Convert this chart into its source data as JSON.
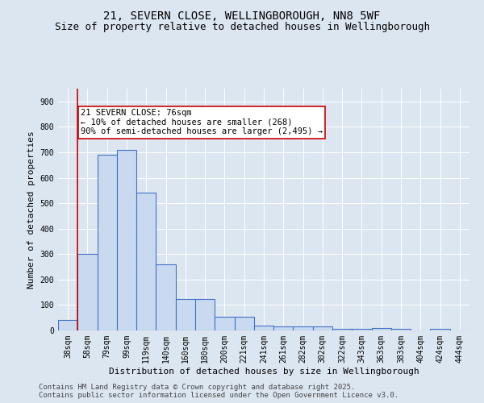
{
  "title_line1": "21, SEVERN CLOSE, WELLINGBOROUGH, NN8 5WF",
  "title_line2": "Size of property relative to detached houses in Wellingborough",
  "xlabel": "Distribution of detached houses by size in Wellingborough",
  "ylabel": "Number of detached properties",
  "categories": [
    "38sqm",
    "58sqm",
    "79sqm",
    "99sqm",
    "119sqm",
    "140sqm",
    "160sqm",
    "180sqm",
    "200sqm",
    "221sqm",
    "241sqm",
    "261sqm",
    "282sqm",
    "302sqm",
    "322sqm",
    "343sqm",
    "363sqm",
    "383sqm",
    "404sqm",
    "424sqm",
    "444sqm"
  ],
  "values": [
    40,
    300,
    690,
    710,
    540,
    260,
    125,
    125,
    55,
    55,
    20,
    15,
    15,
    15,
    6,
    5,
    10,
    5,
    0,
    5,
    0
  ],
  "bar_color": "#c9d9f0",
  "bar_edge_color": "#4472c4",
  "bar_linewidth": 0.8,
  "vline_color": "#cc0000",
  "vline_x_index": 1,
  "annotation_text": "21 SEVERN CLOSE: 76sqm\n← 10% of detached houses are smaller (268)\n90% of semi-detached houses are larger (2,495) →",
  "annotation_box_color": "#ffffff",
  "annotation_box_edgecolor": "#cc0000",
  "ylim": [
    0,
    950
  ],
  "yticks": [
    0,
    100,
    200,
    300,
    400,
    500,
    600,
    700,
    800,
    900
  ],
  "bg_color": "#dce6f1",
  "plot_bg_color": "#dce6f1",
  "footer_text": "Contains HM Land Registry data © Crown copyright and database right 2025.\nContains public sector information licensed under the Open Government Licence v3.0.",
  "title_fontsize": 10,
  "subtitle_fontsize": 9,
  "axis_label_fontsize": 8,
  "tick_fontsize": 7,
  "annotation_fontsize": 7.5,
  "footer_fontsize": 6.5
}
